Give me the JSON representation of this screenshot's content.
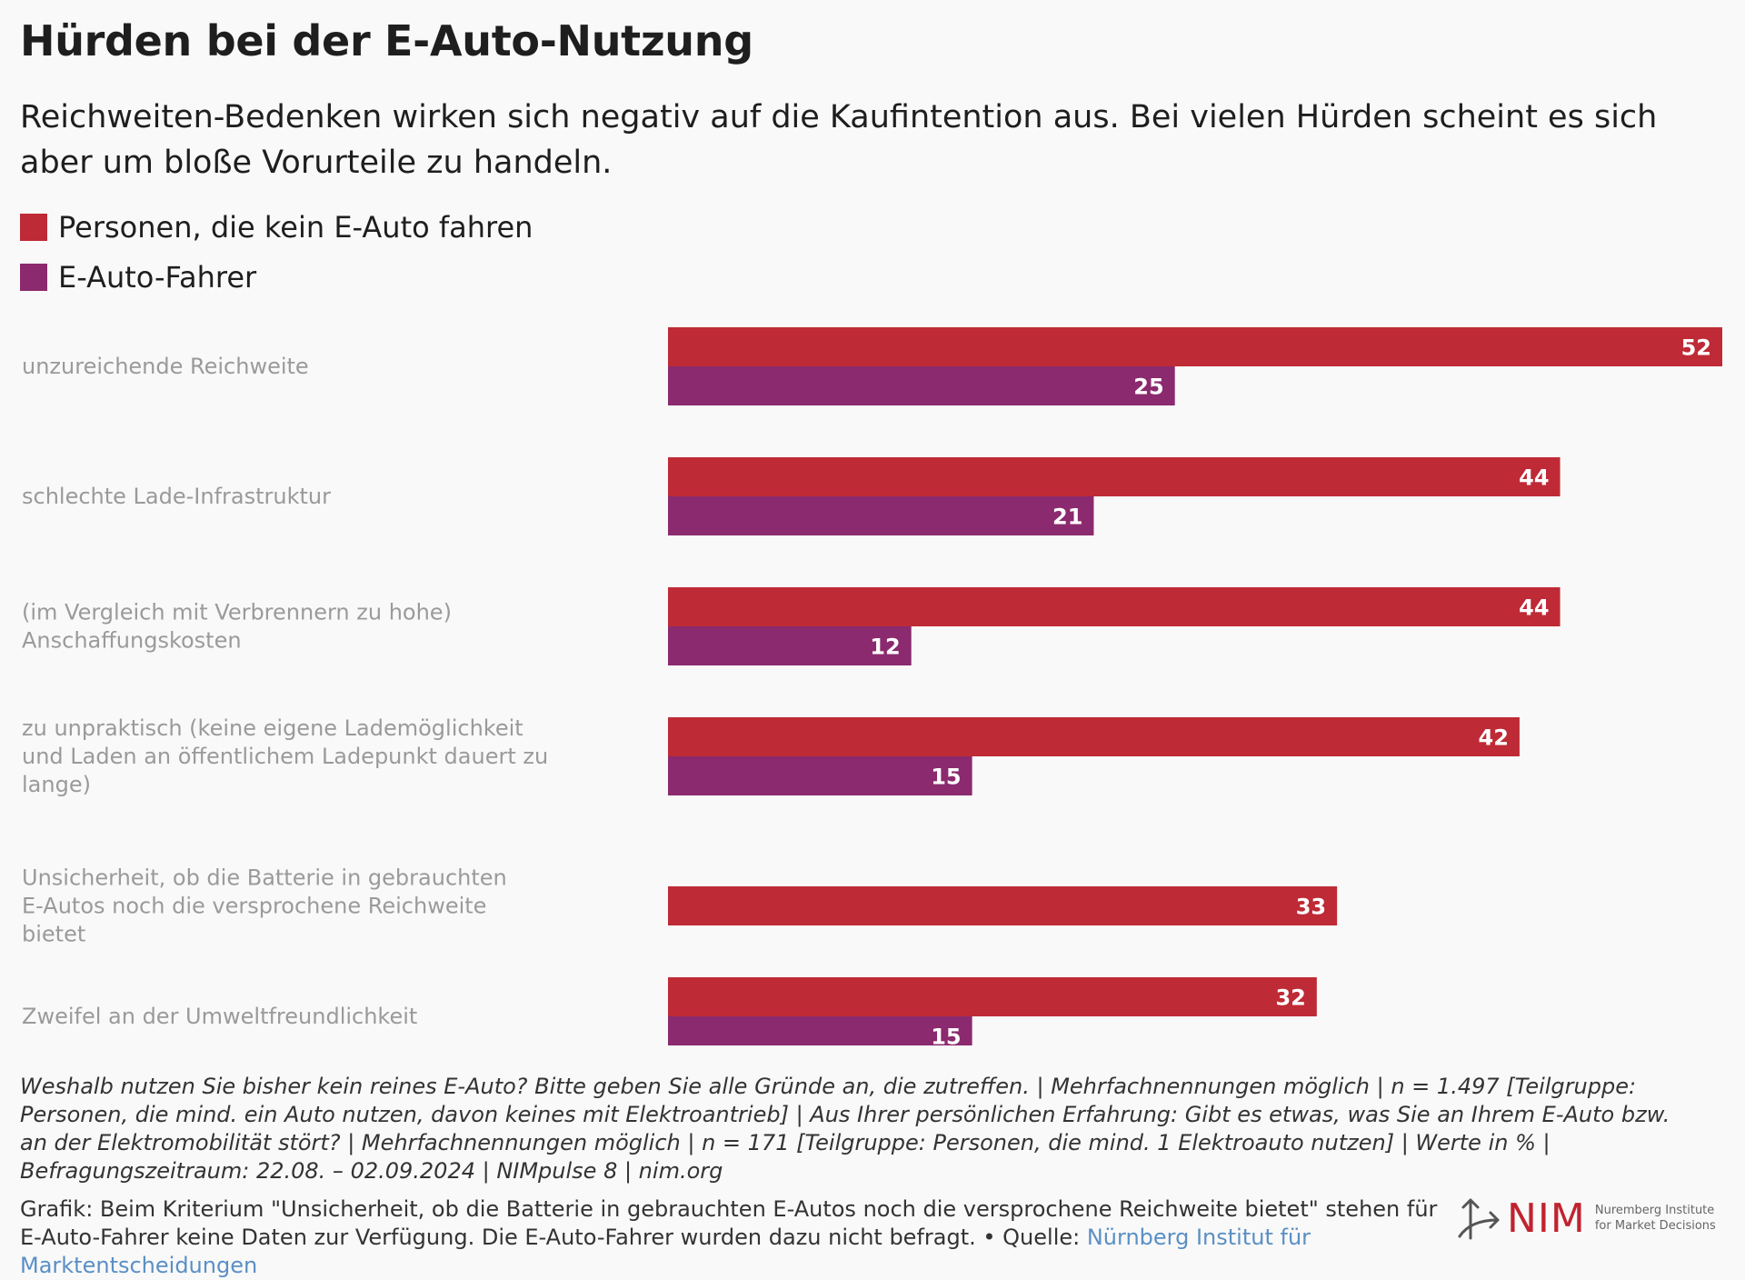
{
  "title": "Hürden bei der E-Auto-Nutzung",
  "subtitle": "Reichweiten-Bedenken wirken sich negativ auf die Kaufintention aus. Bei vielen Hürden scheint es sich aber um bloße Vorurteile zu handeln.",
  "legend": [
    {
      "label": "Personen, die kein E-Auto fahren",
      "color": "#be2a35"
    },
    {
      "label": "E-Auto-Fahrer",
      "color": "#8b2a6e"
    }
  ],
  "chart_data": {
    "type": "bar",
    "orientation": "horizontal",
    "xlim": [
      0,
      52
    ],
    "grid": false,
    "legend_position": "top-left",
    "categories": [
      "unzureichende Reichweite",
      "schlechte Lade-Infrastruktur",
      "(im Vergleich mit Verbrennern zu hohe) Anschaffungskosten",
      "zu unpraktisch (keine eigene Lademöglichkeit und Laden an öffentlichem Ladepunkt dauert zu lange)",
      "Unsicherheit, ob die Batterie in gebrauchten E-Autos noch die versprochene Reichweite bietet",
      "Zweifel an der Umweltfreundlichkeit"
    ],
    "series": [
      {
        "name": "Personen, die kein E-Auto fahren",
        "color": "#be2a35",
        "values": [
          52,
          44,
          44,
          42,
          33,
          32
        ]
      },
      {
        "name": "E-Auto-Fahrer",
        "color": "#8b2a6e",
        "values": [
          25,
          21,
          12,
          15,
          null,
          15
        ]
      }
    ]
  },
  "note": "Weshalb nutzen Sie bisher kein reines E-Auto? Bitte geben Sie alle Gründe an, die zutreffen. | Mehrfachnennungen möglich | n = 1.497 [Teilgruppe: Personen, die mind. ein Auto nutzen, davon keines mit Elektroantrieb] | Aus Ihrer persönlichen Erfahrung: Gibt es etwas, was Sie an Ihrem E-Auto bzw. an der Elektromobilität stört? | Mehrfachnennungen möglich | n = 171 [Teilgruppe: Personen, die mind. 1 Elektroauto nutzen] | Werte in % | Befragungszeitraum: 22.08. – 02.09.2024 | NIMpulse 8 | nim.org",
  "credit": {
    "text": "Grafik: Beim Kriterium \"Unsicherheit, ob die Batterie in gebrauchten E-Autos noch die versprochene Reichweite bietet\" stehen für E-Auto-Fahrer keine Daten zur Verfügung. Die E-Auto-Fahrer wurden dazu nicht befragt. • Quelle: ",
    "source_link": "Nürnberg Institut für Marktentscheidungen"
  },
  "logo": {
    "name": "NIM",
    "line1": "Nuremberg Institute",
    "line2": "for Market Decisions",
    "color": "#c0232f"
  }
}
